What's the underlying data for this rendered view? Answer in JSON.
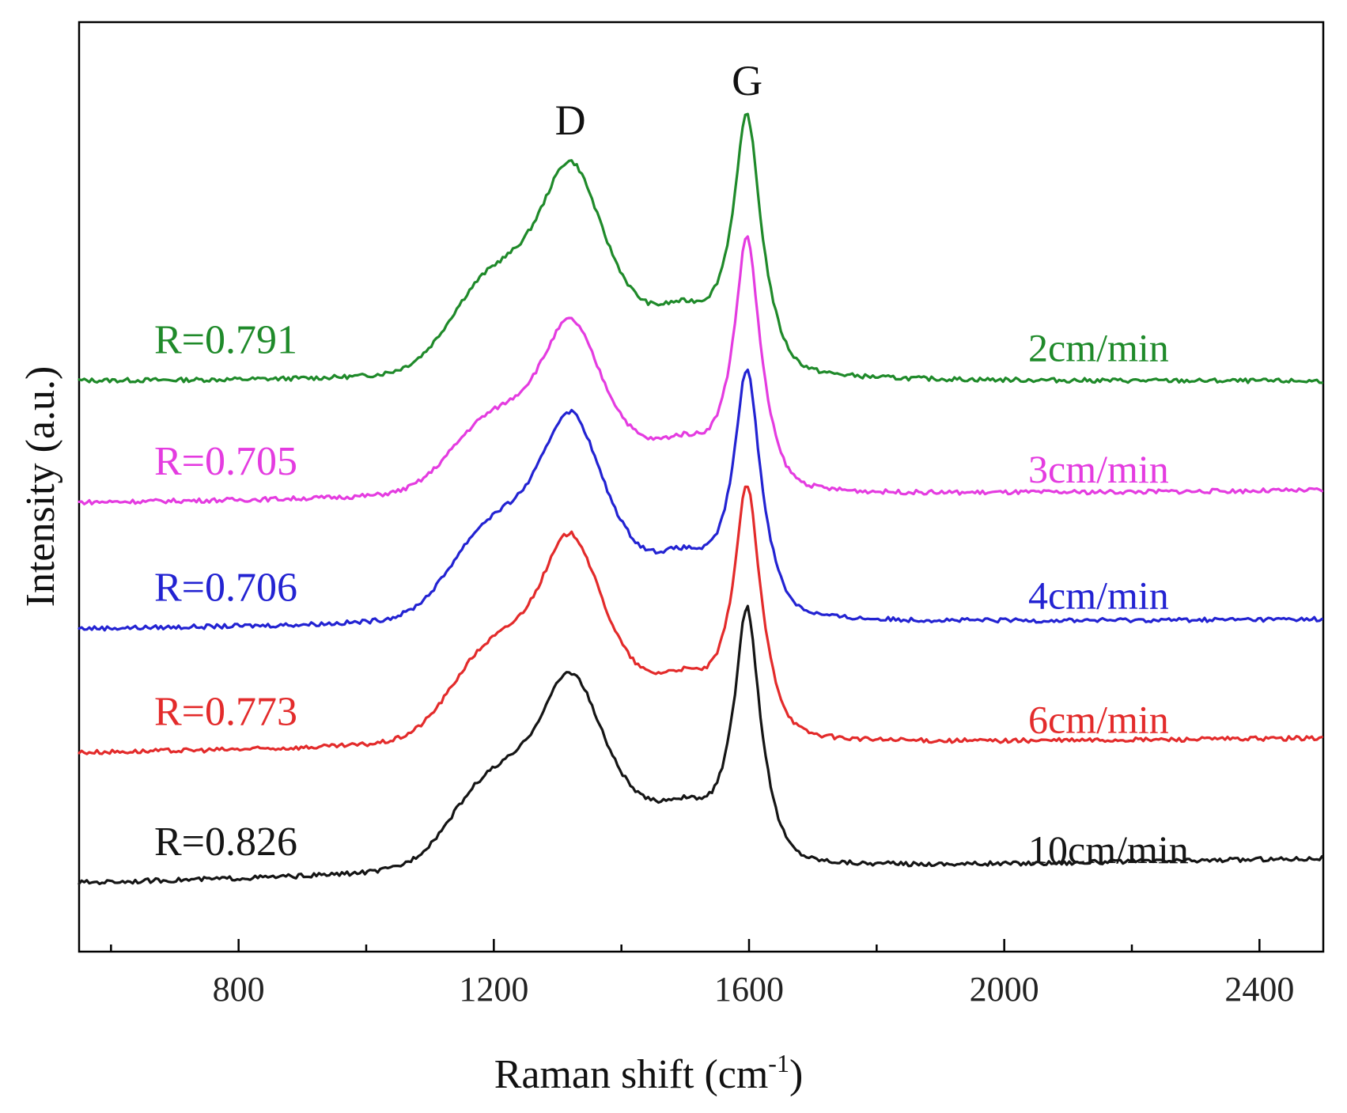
{
  "chart_data": {
    "type": "line",
    "title": "",
    "xlabel": "Raman shift (cm",
    "xlabel_superscript": "-1",
    "xlabel_suffix": ")",
    "ylabel": "Intensity (a.u.)",
    "xlim": [
      550,
      2500
    ],
    "ylim": [
      0,
      7.5
    ],
    "y_ticks_shown": false,
    "x_major_ticks": [
      800,
      1200,
      1600,
      2000,
      2400
    ],
    "x_tick_labels": [
      "800",
      "1200",
      "1600",
      "2000",
      "2400"
    ],
    "x_minor_ticks": [
      600,
      1000,
      1400,
      1800,
      2200
    ],
    "peak_annotations": [
      {
        "label": "D",
        "x": 1320
      },
      {
        "label": "G",
        "x": 1597
      }
    ],
    "series": [
      {
        "name": "2cm/min",
        "r_label": "R=0.791",
        "color": "#1f8a2a",
        "offset": 4.6,
        "d_height": 1.75,
        "g_height": 2.05,
        "d_width": 85,
        "g_width": 32,
        "tilt": 0.0
      },
      {
        "name": "3cm/min",
        "r_label": "R=0.705",
        "color": "#e43ce0",
        "offset": 3.62,
        "d_height": 1.42,
        "g_height": 2.02,
        "d_width": 80,
        "g_width": 30,
        "tilt": 0.1
      },
      {
        "name": "4cm/min",
        "r_label": "R=0.706",
        "color": "#2323d2",
        "offset": 2.6,
        "d_height": 1.7,
        "g_height": 1.96,
        "d_width": 84,
        "g_width": 31,
        "tilt": 0.08
      },
      {
        "name": "6cm/min",
        "r_label": "R=0.773",
        "color": "#e32b2b",
        "offset": 1.6,
        "d_height": 1.7,
        "g_height": 2.0,
        "d_width": 84,
        "g_width": 31,
        "tilt": 0.12
      },
      {
        "name": "10cm/min",
        "r_label": "R=0.826",
        "color": "#151515",
        "offset": 0.55,
        "d_height": 1.6,
        "g_height": 2.02,
        "d_width": 86,
        "g_width": 30,
        "tilt": 0.2
      }
    ]
  }
}
